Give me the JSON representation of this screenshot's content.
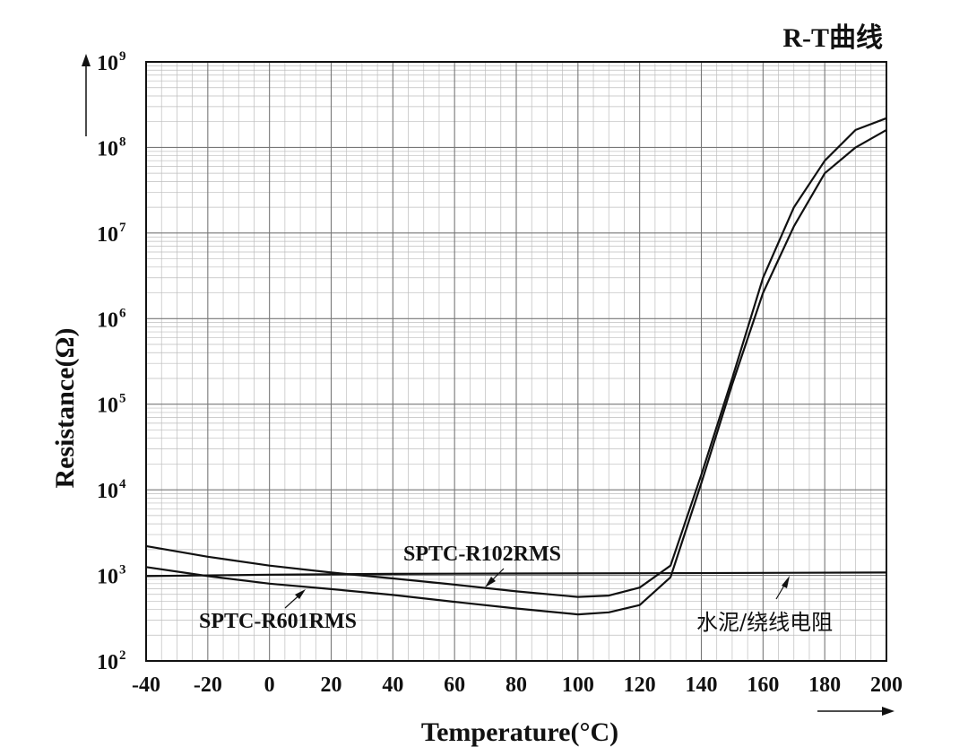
{
  "chart_data": {
    "type": "line",
    "title": "R-T曲线",
    "xlabel": "Temperature(°C)",
    "ylabel": "Resistance(Ω)",
    "xlim": [
      -40,
      200
    ],
    "ylim": [
      100,
      1000000000
    ],
    "yscale": "log",
    "grid": true,
    "x_ticks": [
      "-40",
      "-20",
      "0",
      "20",
      "40",
      "60",
      "80",
      "100",
      "120",
      "140",
      "160",
      "180",
      "200"
    ],
    "y_ticks": [
      {
        "base": "10",
        "exp": "2"
      },
      {
        "base": "10",
        "exp": "3"
      },
      {
        "base": "10",
        "exp": "4"
      },
      {
        "base": "10",
        "exp": "5"
      },
      {
        "base": "10",
        "exp": "6"
      },
      {
        "base": "10",
        "exp": "7"
      },
      {
        "base": "10",
        "exp": "8"
      },
      {
        "base": "10",
        "exp": "9"
      }
    ],
    "series": [
      {
        "name": "SPTC-R102RMS",
        "points": [
          [
            -40,
            2200
          ],
          [
            -20,
            1650
          ],
          [
            0,
            1300
          ],
          [
            20,
            1080
          ],
          [
            40,
            920
          ],
          [
            60,
            780
          ],
          [
            80,
            650
          ],
          [
            100,
            560
          ],
          [
            110,
            580
          ],
          [
            120,
            720
          ],
          [
            130,
            1300
          ],
          [
            140,
            15000
          ],
          [
            150,
            200000
          ],
          [
            160,
            3000000
          ],
          [
            170,
            20000000
          ],
          [
            180,
            70000000
          ],
          [
            190,
            160000000
          ],
          [
            200,
            220000000
          ]
        ]
      },
      {
        "name": "SPTC-R601RMS",
        "points": [
          [
            -40,
            1250
          ],
          [
            -20,
            980
          ],
          [
            0,
            800
          ],
          [
            20,
            690
          ],
          [
            40,
            590
          ],
          [
            60,
            490
          ],
          [
            80,
            410
          ],
          [
            100,
            350
          ],
          [
            110,
            370
          ],
          [
            120,
            450
          ],
          [
            130,
            950
          ],
          [
            140,
            12000
          ],
          [
            150,
            170000
          ],
          [
            160,
            2000000
          ],
          [
            170,
            12000000
          ],
          [
            180,
            50000000
          ],
          [
            190,
            100000000
          ],
          [
            200,
            160000000
          ]
        ]
      },
      {
        "name": "水泥/绕线电阻",
        "points": [
          [
            -40,
            980
          ],
          [
            0,
            1020
          ],
          [
            40,
            1040
          ],
          [
            80,
            1050
          ],
          [
            120,
            1060
          ],
          [
            160,
            1070
          ],
          [
            200,
            1080
          ]
        ]
      }
    ],
    "annotations": [
      {
        "text": "SPTC-R102RMS",
        "target_series": 1
      },
      {
        "text": "SPTC-R601RMS",
        "target_series": 2
      },
      {
        "text": "水泥/绕线电阻",
        "target_series": 3
      }
    ]
  }
}
